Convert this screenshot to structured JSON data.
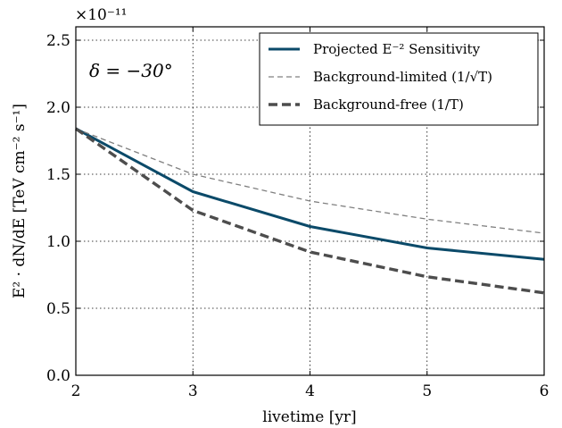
{
  "chart_data": {
    "type": "line",
    "x": [
      2,
      3,
      4,
      5,
      6
    ],
    "xlabel": "livetime [yr]",
    "ylabel": "E² · dN/dE  [TeV cm⁻² s⁻¹]",
    "xlim": [
      2,
      6
    ],
    "ylim": [
      0.0,
      2.6
    ],
    "y_exponent_label": "×10⁻¹¹",
    "x_ticks": [
      "2",
      "3",
      "4",
      "5",
      "6"
    ],
    "y_ticks": [
      "0.0",
      "0.5",
      "1.0",
      "1.5",
      "2.0",
      "2.5"
    ],
    "grid": true,
    "legend_position": "top-right",
    "annotation": "δ = −30°",
    "series": [
      {
        "name": "Projected E⁻² Sensitivity",
        "values": [
          1.84,
          1.37,
          1.11,
          0.95,
          0.865
        ],
        "color": "#0b4a69",
        "style": "solid"
      },
      {
        "name": "Background-limited (1/√T)",
        "values": [
          1.84,
          1.5,
          1.3,
          1.165,
          1.06
        ],
        "color": "#808080",
        "style": "dashed-thin"
      },
      {
        "name": "Background-free (1/T)",
        "values": [
          1.84,
          1.23,
          0.92,
          0.735,
          0.615
        ],
        "color": "#4d4d4d",
        "style": "dashed-thick"
      }
    ]
  }
}
